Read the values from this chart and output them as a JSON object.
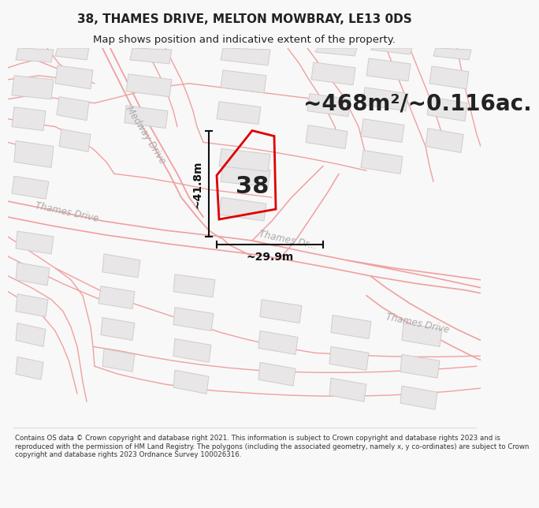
{
  "title": "38, THAMES DRIVE, MELTON MOWBRAY, LE13 0DS",
  "subtitle": "Map shows position and indicative extent of the property.",
  "area_label": "~468m²/~0.116ac.",
  "number_label": "38",
  "dim_width": "~29.9m",
  "dim_height": "~41.8m",
  "footer": "Contains OS data © Crown copyright and database right 2021. This information is subject to Crown copyright and database rights 2023 and is reproduced with the permission of HM Land Registry. The polygons (including the associated geometry, namely x, y co-ordinates) are subject to Crown copyright and database rights 2023 Ordnance Survey 100026316.",
  "bg_color": "#f8f8f8",
  "map_bg": "#ffffff",
  "road_color": "#f0a0a0",
  "road_lw": 1.0,
  "building_color": "#e8e6e6",
  "building_edge": "#d0cccc",
  "highlight_color": "#dd0000",
  "dim_color": "#111111",
  "title_color": "#222222",
  "road_label_color": "#aaaaaa",
  "area_label_color": "#222222",
  "number_color": "#222222",
  "title_fontsize": 11,
  "subtitle_fontsize": 9.5,
  "area_fontsize": 20,
  "number_fontsize": 22,
  "dim_fontsize": 10,
  "road_label_fontsize": 8.5,
  "footer_fontsize": 6.2
}
